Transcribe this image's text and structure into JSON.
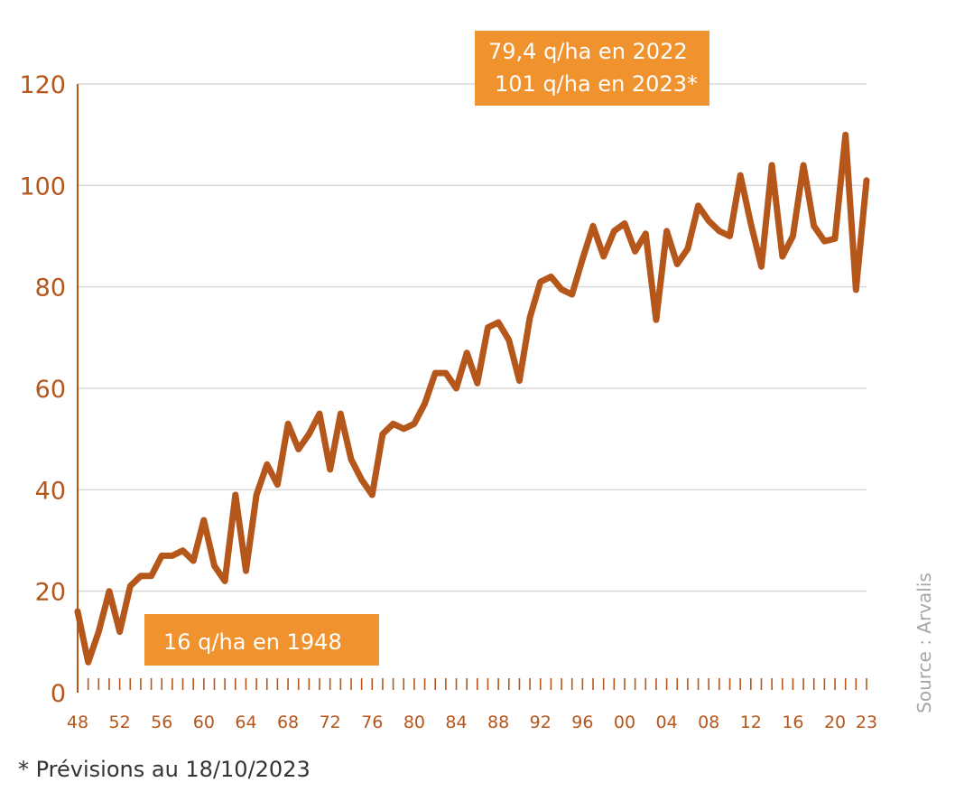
{
  "chart_data": {
    "type": "line",
    "x_start_year": 1948,
    "x_end_year": 2023,
    "x_tick_labels": [
      "48",
      "52",
      "56",
      "60",
      "64",
      "68",
      "72",
      "76",
      "80",
      "84",
      "88",
      "92",
      "96",
      "00",
      "04",
      "08",
      "12",
      "16",
      "20",
      "23"
    ],
    "ylim": [
      0,
      120
    ],
    "y_ticks": [
      0,
      20,
      40,
      60,
      80,
      100,
      120
    ],
    "grid": true,
    "color": "#b5561b",
    "series": [
      {
        "x": [
          1948,
          1949,
          1950,
          1951,
          1952,
          1953,
          1954,
          1955,
          1956,
          1957,
          1958,
          1959,
          1960,
          1961,
          1962,
          1963,
          1964,
          1965,
          1966,
          1967,
          1968,
          1969,
          1970,
          1971,
          1972,
          1973,
          1974,
          1975,
          1976,
          1977,
          1978,
          1979,
          1980,
          1981,
          1982,
          1983,
          1984,
          1985,
          1986,
          1987,
          1988,
          1989,
          1990,
          1991,
          1992,
          1993,
          1994,
          1995,
          1996,
          1997,
          1998,
          1999,
          2000,
          2001,
          2002,
          2003,
          2004,
          2005,
          2006,
          2007,
          2008,
          2009,
          2010,
          2011,
          2012,
          2013,
          2014,
          2015,
          2016,
          2017,
          2018,
          2019,
          2020,
          2021,
          2022,
          2023
        ],
        "values": [
          16,
          6,
          12,
          20,
          12,
          21,
          23,
          23,
          27,
          27,
          28,
          26,
          34,
          25,
          22,
          39,
          24,
          39,
          45,
          41,
          53,
          48,
          51,
          55,
          44,
          55,
          46,
          42,
          39,
          51,
          53,
          52,
          53,
          57,
          63,
          63,
          60,
          67,
          61,
          72,
          73,
          69.5,
          61.5,
          74,
          81,
          82,
          79.5,
          78.5,
          85.5,
          92,
          86,
          91,
          92.5,
          87,
          90.5,
          73.5,
          91,
          84.5,
          87.5,
          96,
          93,
          91,
          90,
          102,
          92.5,
          84,
          104,
          86,
          90,
          104,
          92,
          89,
          89.5,
          110,
          79.4,
          101
        ]
      }
    ],
    "annotations": [
      {
        "lines": [
          "79,4 q/ha en 2022",
          "101 q/ha en 2023*"
        ]
      },
      {
        "lines": [
          "16 q/ha en 1948"
        ]
      }
    ],
    "source": "Source : Arvalis",
    "footnote": "* Prévisions au 18/10/2023"
  }
}
